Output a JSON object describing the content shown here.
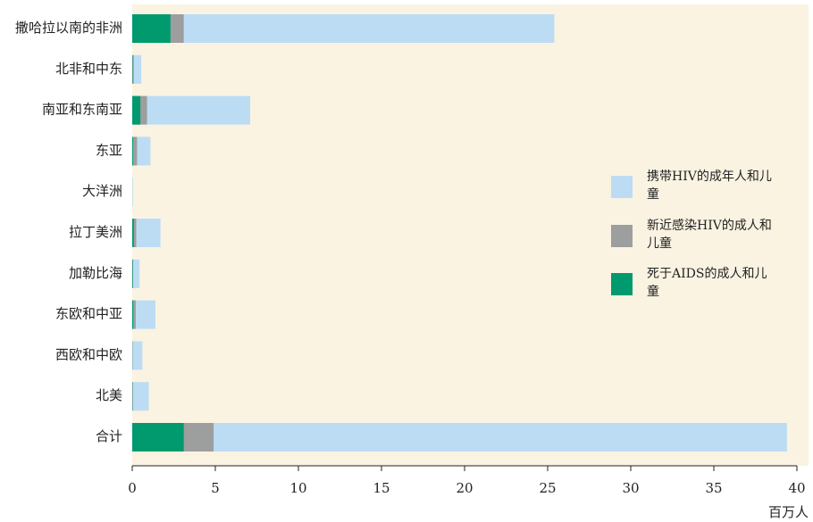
{
  "chart_data": {
    "type": "bar",
    "orientation": "horizontal",
    "overlay": true,
    "categories": [
      "撒哈拉以南的非洲",
      "北非和中东",
      "南亚和东南亚",
      "东亚",
      "大洋洲",
      "拉丁美洲",
      "加勒比海",
      "东欧和中亚",
      "西欧和中欧",
      "北美",
      "合计"
    ],
    "series": [
      {
        "name": "携带HIV的成年人和儿童",
        "color": "#bcdcf4",
        "values": [
          25.4,
          0.54,
          7.1,
          1.1,
          0.035,
          1.7,
          0.44,
          1.4,
          0.61,
          1.0,
          39.4
        ]
      },
      {
        "name": "新近感染HIV的成人和儿童",
        "color": "#9d9e9e",
        "values": [
          3.1,
          0.092,
          0.89,
          0.29,
          0.005,
          0.24,
          0.053,
          0.21,
          0.021,
          0.044,
          4.9
        ]
      },
      {
        "name": "死于AIDS的成人和儿童",
        "color": "#009a6e",
        "values": [
          2.3,
          0.028,
          0.49,
          0.051,
          0.0007,
          0.095,
          0.036,
          0.06,
          0.0065,
          0.016,
          3.1
        ]
      }
    ],
    "xlim": [
      0,
      40
    ],
    "xticks": [
      0,
      5,
      10,
      15,
      20,
      25,
      30,
      35,
      40
    ],
    "xlabel": "百万人",
    "legend": "right"
  }
}
